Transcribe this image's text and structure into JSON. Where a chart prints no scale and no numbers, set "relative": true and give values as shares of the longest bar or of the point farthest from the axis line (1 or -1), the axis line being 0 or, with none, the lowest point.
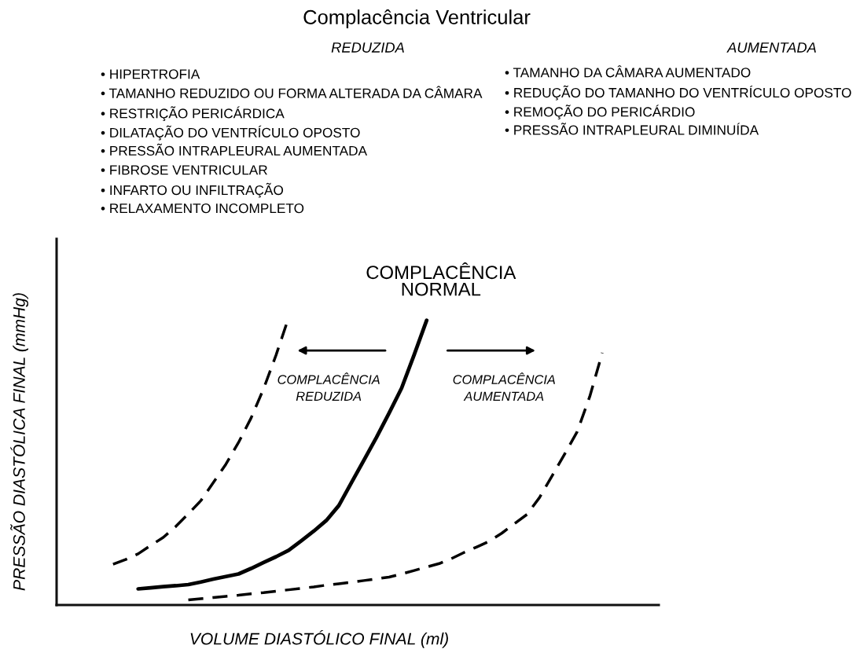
{
  "chart_data": {
    "type": "line",
    "relative": true,
    "title": "Complacência Ventricular",
    "xlabel": "VOLUME DIASTÓLICO FINAL (ml)",
    "ylabel": "PRESSÃO DIASTÓLICA FINAL (mmHg)",
    "categories": [
      null,
      null,
      null,
      null,
      null,
      null,
      null,
      null,
      null,
      null,
      null,
      null,
      null,
      null,
      null,
      null,
      null,
      null,
      null,
      null,
      null,
      null,
      null,
      null,
      null,
      null,
      null,
      null,
      null,
      null,
      null,
      null,
      null,
      null,
      null,
      null,
      null,
      null,
      null,
      null,
      null,
      null,
      null,
      null,
      null,
      null,
      null,
      null
    ],
    "series": [
      {
        "name": "COMPLACÊNCIA REDUZIDA",
        "color": "#000000",
        "line_style": "dashed",
        "values": [
          null,
          null,
          null,
          null,
          0.142,
          0.158,
          0.178,
          0.207,
          0.235,
          0.273,
          0.317,
          0.363,
          0.426,
          0.49,
          0.565,
          0.65,
          0.752,
          0.87,
          1.0,
          null,
          null,
          null,
          null,
          null,
          null,
          null,
          null,
          null,
          null,
          null,
          null,
          null,
          null,
          null,
          null,
          null,
          null,
          null,
          null,
          null,
          null,
          null,
          null,
          null,
          null,
          null,
          null,
          null
        ]
      },
      {
        "name": "COMPLACÊNCIA NORMAL",
        "color": "#000000",
        "line_style": "solid",
        "values": [
          null,
          null,
          null,
          null,
          null,
          null,
          0.056,
          0.06,
          0.064,
          0.067,
          0.071,
          0.08,
          0.09,
          0.099,
          0.108,
          0.127,
          0.148,
          0.168,
          0.19,
          0.223,
          0.257,
          0.294,
          0.346,
          0.425,
          0.504,
          0.583,
          0.667,
          0.754,
          0.87,
          0.99,
          null,
          null,
          null,
          null,
          null,
          null,
          null,
          null,
          null,
          null,
          null,
          null,
          null,
          null,
          null,
          null,
          null,
          null
        ]
      },
      {
        "name": "COMPLACÊNCIA AUMENTADA",
        "color": "#000000",
        "line_style": "dashed",
        "values": [
          null,
          null,
          null,
          null,
          null,
          null,
          null,
          null,
          null,
          null,
          0.018,
          0.022,
          0.026,
          0.03,
          0.034,
          0.039,
          0.043,
          0.048,
          0.053,
          0.058,
          0.063,
          0.069,
          0.074,
          0.079,
          0.085,
          0.091,
          0.097,
          0.108,
          0.12,
          0.132,
          0.144,
          0.162,
          0.183,
          0.202,
          0.222,
          0.25,
          0.283,
          0.315,
          0.374,
          0.449,
          0.525,
          0.603,
          0.725,
          0.877,
          null,
          null,
          null,
          null
        ]
      }
    ],
    "annotations": [
      "REDUZIDA",
      "• HIPERTROFIA\n• TAMANHO REDUZIDO OU FORMA ALTERADA DA CÂMARA\n• RESTRIÇÃO PERICÁRDICA\n• DILATAÇÃO DO VENTRÍCULO OPOSTO\n• PRESSÃO INTRAPLEURAL AUMENTADA\n• FIBROSE VENTRICULAR\n• INFARTO OU INFILTRAÇÃO\n• RELAXAMENTO INCOMPLETO",
      "AUMENTADA",
      "• TAMANHO DA CÂMARA AUMENTADO\n• REDUÇÃO DO TAMANHO DO VENTRÍCULO OPOSTO\n• REMOÇÃO DO PERICÁRDIO\n• PRESSÃO INTRAPLEURAL DIMINUÍDA"
    ],
    "legend": false,
    "marker": "none"
  }
}
